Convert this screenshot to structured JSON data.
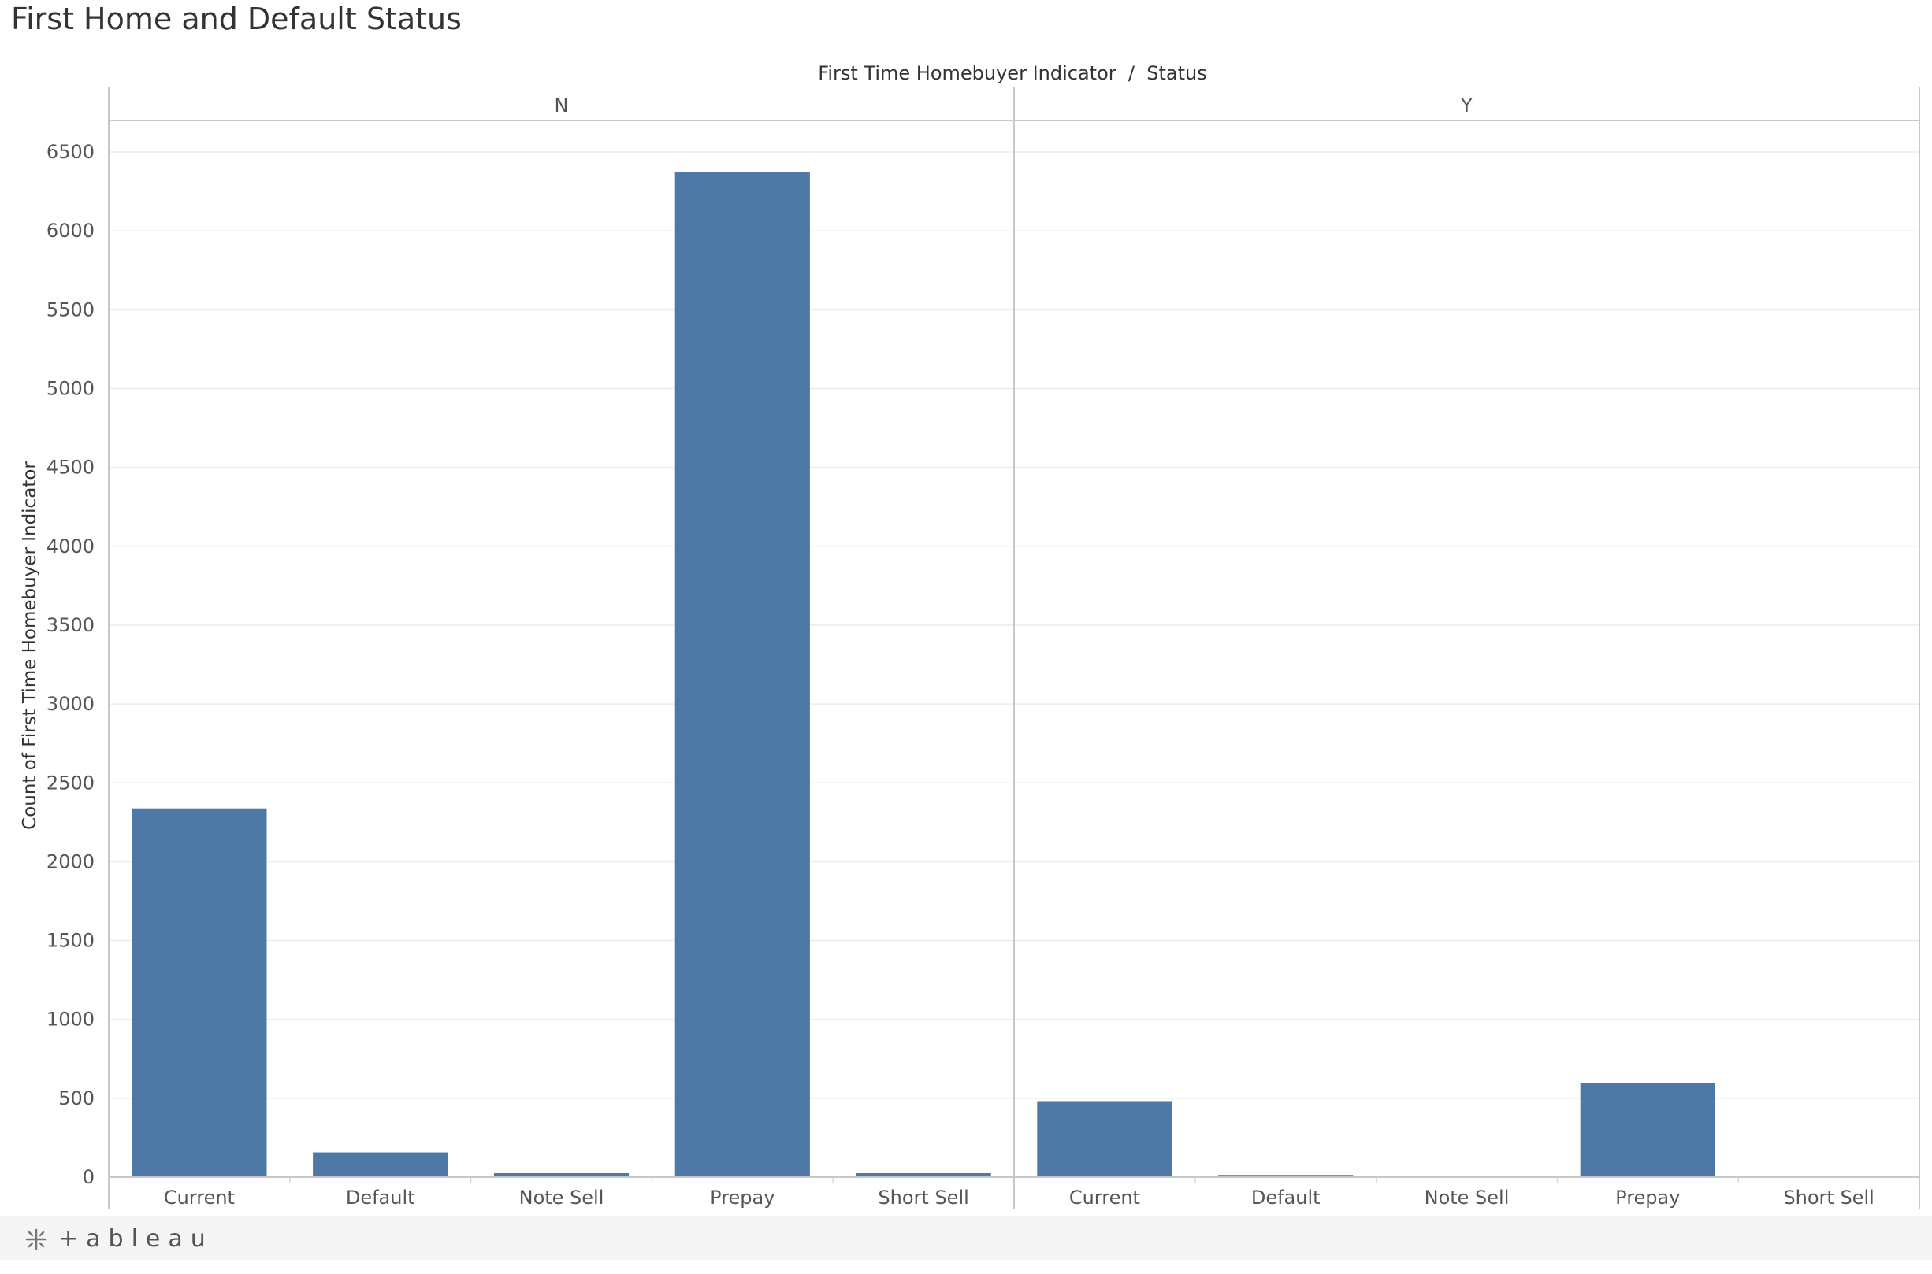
{
  "title": "First Home and Default Status",
  "branding": {
    "wordmark": "+ableau",
    "icon": "tableau-logo-icon"
  },
  "colors": {
    "bar": "#4e79a7",
    "grid": "#ececec",
    "divider": "#c8c8c8",
    "axis_text": "#555555",
    "header_text": "#333333"
  },
  "chart_data": {
    "type": "bar",
    "column_header": "First Time Homebuyer Indicator  /  Status",
    "ylabel": "Count of First Time Homebuyer Indicator",
    "ylim": [
      0,
      6700
    ],
    "yticks": [
      0,
      500,
      1000,
      1500,
      2000,
      2500,
      3000,
      3500,
      4000,
      4500,
      5000,
      5500,
      6000,
      6500
    ],
    "grid": true,
    "panels": [
      {
        "name": "N",
        "categories": [
          "Current",
          "Default",
          "Note Sell",
          "Prepay",
          "Short Sell"
        ],
        "values": [
          2338,
          157,
          25,
          6374,
          25
        ]
      },
      {
        "name": "Y",
        "categories": [
          "Current",
          "Default",
          "Note Sell",
          "Prepay",
          "Short Sell"
        ],
        "values": [
          482,
          14,
          0,
          597,
          0
        ]
      }
    ]
  }
}
